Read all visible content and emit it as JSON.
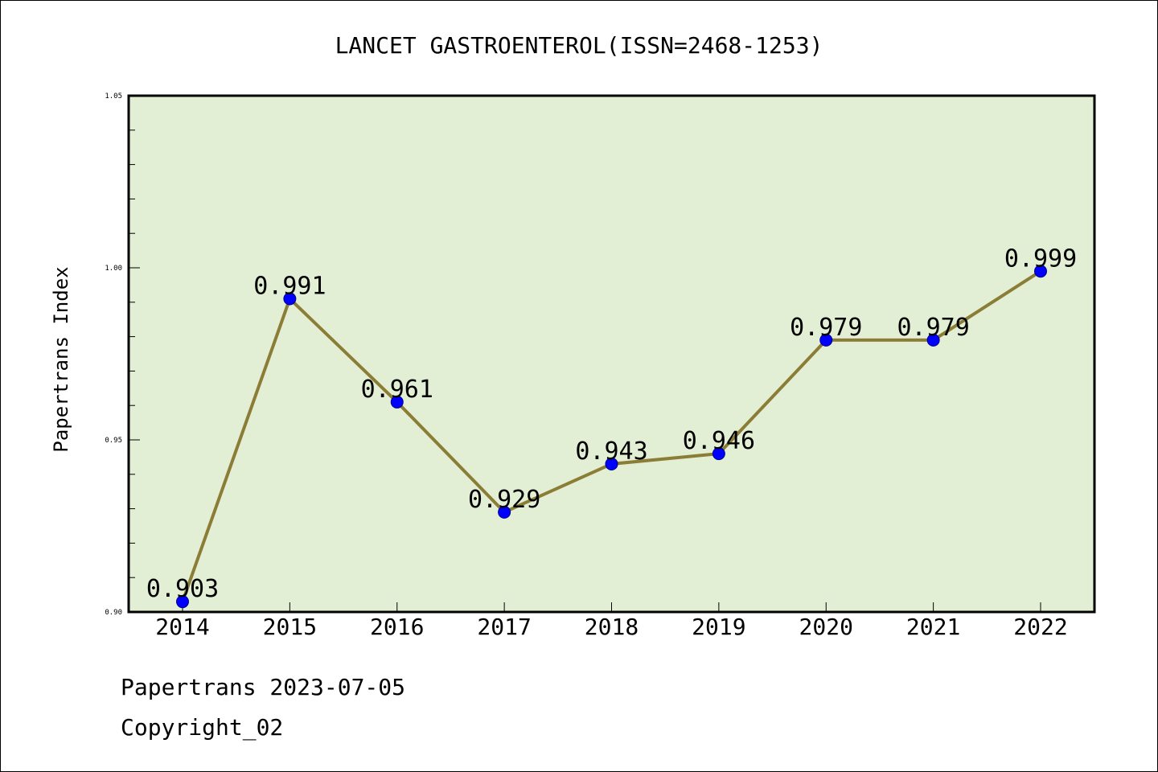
{
  "chart_data": {
    "type": "line",
    "title": "LANCET GASTROENTEROL(ISSN=2468-1253)",
    "ylabel": "Papertrans Index",
    "xlabel": "",
    "categories": [
      "2014",
      "2015",
      "2016",
      "2017",
      "2018",
      "2019",
      "2020",
      "2021",
      "2022"
    ],
    "values": [
      0.903,
      0.991,
      0.961,
      0.929,
      0.943,
      0.946,
      0.979,
      0.979,
      0.999
    ],
    "value_labels": [
      "0.903",
      "0.991",
      "0.961",
      "0.929",
      "0.943",
      "0.946",
      "0.979",
      "0.979",
      "0.999"
    ],
    "ylim": [
      0.9,
      1.05
    ],
    "yticks": [
      "0.90",
      "0.95",
      "1.00",
      "1.05"
    ],
    "grid": false,
    "colors": {
      "plot_background": "#e2efd5",
      "line": "#8b7d35",
      "marker": "#0000ff"
    }
  },
  "footer": {
    "line1": "Papertrans 2023-07-05",
    "line2": "Copyright_02"
  }
}
